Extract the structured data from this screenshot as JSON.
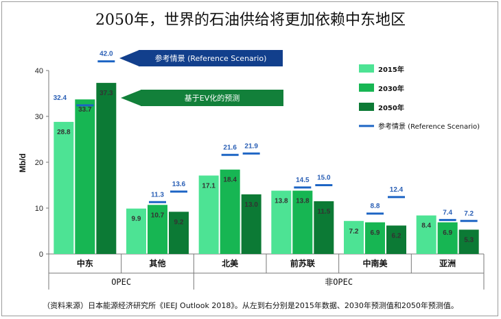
{
  "title": "2050年，世界的石油供给将更加依赖中东地区",
  "source_note": "（资料来源）日本能源经济研究所《IEEJ Outlook 2018》。从左到右分别是2015年数据、2030年预测值和2050年预测值。",
  "callouts": {
    "reference": "参考情景 (Reference Scenario)",
    "ev": "基于EV化的预测"
  },
  "colors": {
    "s2015": "#4de394",
    "s2030": "#17b653",
    "s2050": "#0c7a35",
    "reference": "#1c64c4",
    "callout_ref": "#123f8c",
    "callout_ev": "#12803a"
  },
  "chart_data": {
    "type": "bar",
    "ylabel": "Mb/d",
    "ylim": [
      0,
      40
    ],
    "yticks": [
      0,
      10,
      20,
      30,
      40
    ],
    "categories": [
      "中东",
      "其他",
      "北美",
      "前苏联",
      "中南美",
      "亚洲"
    ],
    "groups": [
      {
        "label": "OPEC",
        "categories": [
          "中东",
          "其他"
        ]
      },
      {
        "label": "非OPEC",
        "categories": [
          "北美",
          "前苏联",
          "中南美",
          "亚洲"
        ]
      }
    ],
    "series": [
      {
        "name": "2015年",
        "values": [
          28.8,
          9.9,
          17.1,
          13.8,
          7.2,
          8.4
        ]
      },
      {
        "name": "2030年",
        "values": [
          33.7,
          10.7,
          18.4,
          13.8,
          6.9,
          6.9
        ]
      },
      {
        "name": "2050年",
        "values": [
          37.3,
          9.2,
          13.0,
          11.5,
          6.2,
          5.3
        ]
      }
    ],
    "reference_scenario": {
      "name": "参考情景 (Reference Scenario)",
      "values_2030": [
        32.4,
        11.3,
        21.6,
        14.5,
        8.8,
        7.4
      ],
      "values_2050": [
        42.0,
        13.6,
        21.9,
        15.0,
        12.4,
        7.2
      ]
    }
  }
}
